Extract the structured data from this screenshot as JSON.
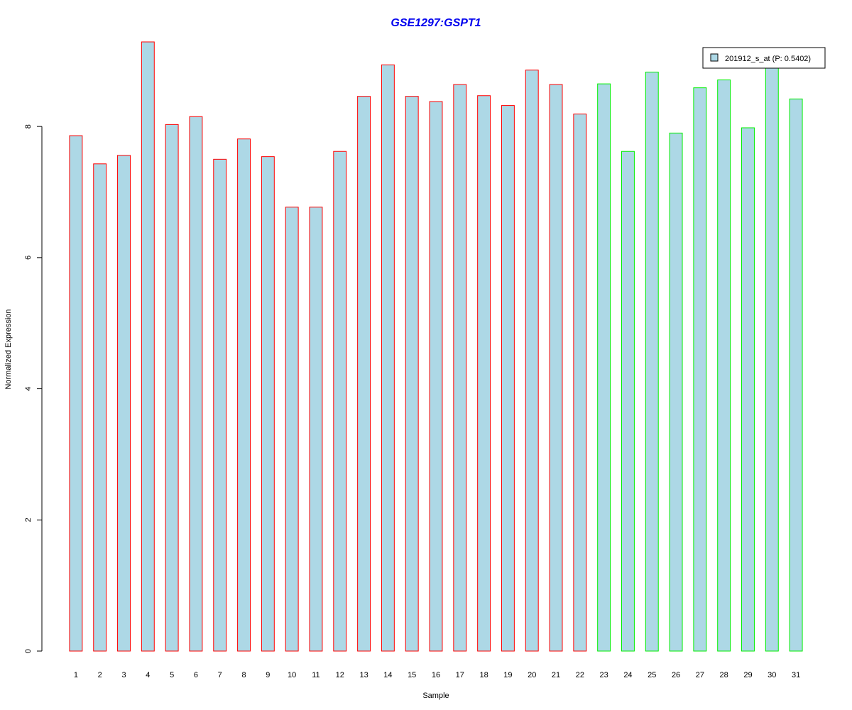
{
  "chart_data": {
    "type": "bar",
    "title": "GSE1297:GSPT1",
    "xlabel": "Sample",
    "ylabel": "Normalized Expression",
    "categories": [
      "1",
      "2",
      "3",
      "4",
      "5",
      "6",
      "7",
      "8",
      "9",
      "10",
      "11",
      "12",
      "13",
      "14",
      "15",
      "16",
      "17",
      "18",
      "19",
      "20",
      "21",
      "22",
      "23",
      "24",
      "25",
      "26",
      "27",
      "28",
      "29",
      "30",
      "31"
    ],
    "values": [
      7.86,
      7.43,
      7.56,
      9.29,
      8.03,
      8.15,
      7.5,
      7.81,
      7.54,
      6.77,
      6.77,
      7.62,
      8.46,
      8.94,
      8.46,
      8.38,
      8.64,
      8.47,
      8.32,
      8.86,
      8.64,
      8.19,
      8.65,
      7.62,
      8.83,
      7.9,
      8.59,
      8.71,
      7.98,
      8.9,
      8.42
    ],
    "groups": [
      "red",
      "red",
      "red",
      "red",
      "red",
      "red",
      "red",
      "red",
      "red",
      "red",
      "red",
      "red",
      "red",
      "red",
      "red",
      "red",
      "red",
      "red",
      "red",
      "red",
      "red",
      "red",
      "green",
      "green",
      "green",
      "green",
      "green",
      "green",
      "green",
      "green",
      "green"
    ],
    "ylim": [
      0,
      9.29
    ],
    "yticks": [
      0,
      2,
      4,
      6,
      8
    ],
    "series": [
      {
        "name": "201912_s_at (P: 0.5402)"
      }
    ],
    "legend_position": "top-right",
    "grid": false,
    "colors": {
      "title": "#0000ee",
      "bar_fill": "#add8e6",
      "border_red": "#ff0000",
      "border_green": "#00ee00",
      "axis": "#000000"
    }
  }
}
